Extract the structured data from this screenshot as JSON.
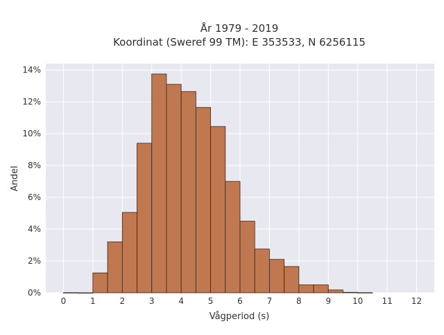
{
  "chart_data": {
    "type": "bar",
    "title_lines": [
      "År 1979 - 2019",
      "Koordinat (Sweref 99 TM): E 353533, N 6256115"
    ],
    "xlabel": "Vågperiod (s)",
    "ylabel": "Andel",
    "bin_width": 0.5,
    "bins": [
      {
        "x0": 0.0,
        "value": 0.01
      },
      {
        "x0": 0.5,
        "value": 0.0
      },
      {
        "x0": 1.0,
        "value": 1.25
      },
      {
        "x0": 1.5,
        "value": 3.2
      },
      {
        "x0": 2.0,
        "value": 5.05
      },
      {
        "x0": 2.5,
        "value": 9.4
      },
      {
        "x0": 3.0,
        "value": 13.75
      },
      {
        "x0": 3.5,
        "value": 13.1
      },
      {
        "x0": 4.0,
        "value": 12.65
      },
      {
        "x0": 4.5,
        "value": 11.65
      },
      {
        "x0": 5.0,
        "value": 10.45
      },
      {
        "x0": 5.5,
        "value": 7.0
      },
      {
        "x0": 6.0,
        "value": 4.5
      },
      {
        "x0": 6.5,
        "value": 2.75
      },
      {
        "x0": 7.0,
        "value": 2.1
      },
      {
        "x0": 7.5,
        "value": 1.65
      },
      {
        "x0": 8.0,
        "value": 0.5
      },
      {
        "x0": 8.5,
        "value": 0.5
      },
      {
        "x0": 9.0,
        "value": 0.18
      },
      {
        "x0": 9.5,
        "value": 0.03
      },
      {
        "x0": 10.0,
        "value": 0.01
      }
    ],
    "xlim": [
      -0.6,
      12.6
    ],
    "ylim": [
      0,
      14.4
    ],
    "x_ticks": [
      "0",
      "1",
      "2",
      "3",
      "4",
      "5",
      "6",
      "7",
      "8",
      "9",
      "10",
      "11",
      "12"
    ],
    "y_ticks": [
      "0%",
      "2%",
      "4%",
      "6%",
      "8%",
      "10%",
      "12%",
      "14%"
    ],
    "grid": true,
    "colors": {
      "bar_fill": "#c07850",
      "bar_edge": "#3a2418",
      "plot_background": "#e8e8f0",
      "grid": "#ffffff"
    }
  }
}
